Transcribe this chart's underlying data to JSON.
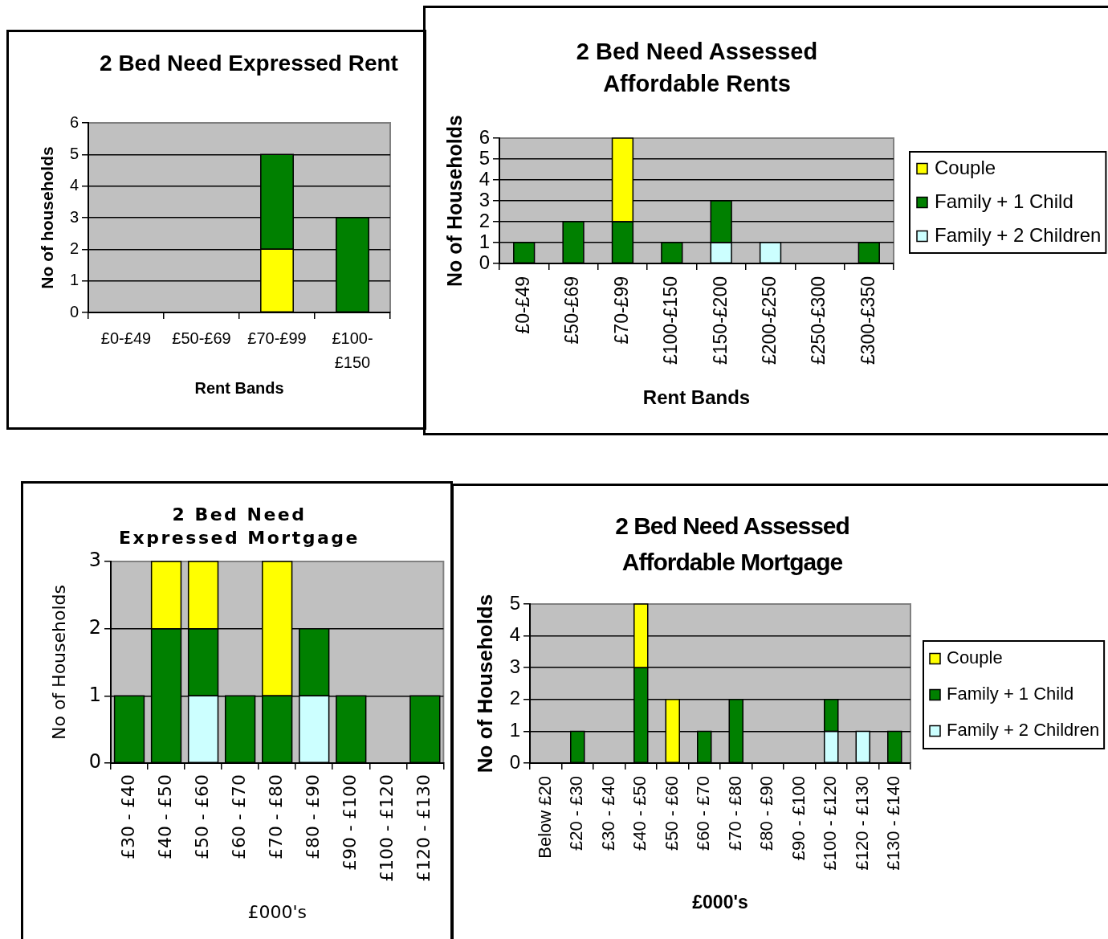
{
  "chart_data": [
    {
      "type": "bar",
      "title": "2 Bed Need Expressed Rent",
      "xlabel": "Rent Bands",
      "ylabel": "No of households",
      "categories": [
        "£0-£49",
        "£50-£69",
        "£70-£99",
        "£100-£150"
      ],
      "series": [
        {
          "color": "#ffff00",
          "values": [
            0,
            0,
            2,
            0
          ]
        },
        {
          "color": "#008000",
          "values": [
            0,
            0,
            3,
            3
          ]
        }
      ],
      "stacked": true,
      "ylim": [
        0,
        6
      ],
      "yticks": [
        0,
        1,
        2,
        3,
        4,
        5,
        6
      ],
      "grid": "y"
    },
    {
      "type": "bar",
      "title": "2 Bed Need Assessed Affordable Rents",
      "xlabel": "Rent Bands",
      "ylabel": "No of Households",
      "categories": [
        "£0-£49",
        "£50-£69",
        "£70-£99",
        "£100-£150",
        "£150-£200",
        "£200-£250",
        "£250-£300",
        "£300-£350"
      ],
      "series": [
        {
          "name": "Family + 2 Children",
          "color": "#ccffff",
          "values": [
            0,
            0,
            0,
            0,
            1,
            1,
            0,
            0
          ]
        },
        {
          "name": "Family + 1 Child",
          "color": "#008000",
          "values": [
            1,
            2,
            2,
            1,
            2,
            0,
            0,
            1
          ]
        },
        {
          "name": "Couple",
          "color": "#ffff00",
          "values": [
            0,
            0,
            4,
            0,
            0,
            0,
            0,
            0
          ]
        }
      ],
      "stacked": true,
      "ylim": [
        0,
        6
      ],
      "yticks": [
        0,
        1,
        2,
        3,
        4,
        5,
        6
      ],
      "grid": "y",
      "legend": "right"
    },
    {
      "type": "bar",
      "title": "2 Bed Need Expressed Mortgage",
      "xlabel": "£000's",
      "ylabel": "No of Households",
      "categories": [
        "£30 - £40",
        "£40 - £50",
        "£50 - £60",
        "£60 - £70",
        "£70 - £80",
        "£80 - £90",
        "£90 - £100",
        "£100 - £120",
        "£120 - £130"
      ],
      "series": [
        {
          "color": "#ccffff",
          "values": [
            0,
            0,
            1,
            0,
            0,
            1,
            0,
            0,
            0
          ]
        },
        {
          "color": "#008000",
          "values": [
            1,
            2,
            1,
            1,
            1,
            1,
            1,
            0,
            1
          ]
        },
        {
          "color": "#ffff00",
          "values": [
            0,
            1,
            1,
            0,
            2,
            0,
            0,
            0,
            0
          ]
        }
      ],
      "stacked": true,
      "ylim": [
        0,
        3
      ],
      "yticks": [
        0,
        1,
        2,
        3
      ],
      "grid": "y"
    },
    {
      "type": "bar",
      "title": "2 Bed Need Assessed Affordable Mortgage",
      "xlabel": "£000's",
      "ylabel": "No of Households",
      "categories": [
        "Below £20",
        "£20 - £30",
        "£30 - £40",
        "£40 - £50",
        "£50 - £60",
        "£60 - £70",
        "£70 - £80",
        "£80 - £90",
        "£90 - £100",
        "£100 - £120",
        "£120 - £130",
        "£130 - £140"
      ],
      "series": [
        {
          "name": "Family + 2 Children",
          "color": "#ccffff",
          "values": [
            0,
            0,
            0,
            0,
            0,
            0,
            0,
            0,
            0,
            1,
            1,
            0
          ]
        },
        {
          "name": "Family + 1 Child",
          "color": "#008000",
          "values": [
            0,
            1,
            0,
            3,
            0,
            1,
            2,
            0,
            0,
            1,
            0,
            1
          ]
        },
        {
          "name": "Couple",
          "color": "#ffff00",
          "values": [
            0,
            0,
            0,
            2,
            2,
            0,
            0,
            0,
            0,
            0,
            0,
            0
          ]
        }
      ],
      "stacked": true,
      "ylim": [
        0,
        5
      ],
      "yticks": [
        0,
        1,
        2,
        3,
        4,
        5
      ],
      "grid": "y",
      "legend": "right"
    }
  ]
}
